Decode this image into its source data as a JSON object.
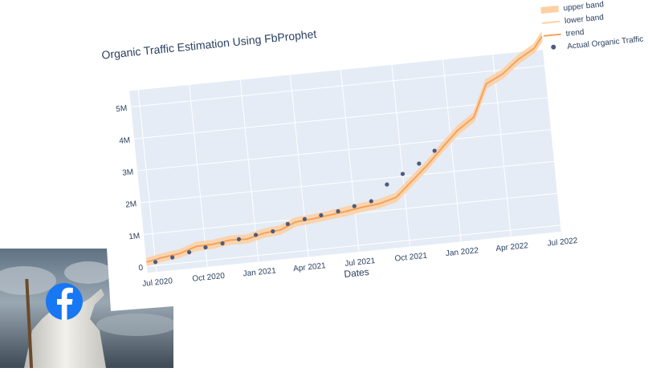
{
  "chart_data": {
    "type": "line",
    "title": "Organic Traffic Estimation Using FbProphet",
    "xlabel": "Dates",
    "ylabel": "",
    "x_tick_labels": [
      "Jul 2020",
      "Oct 2020",
      "Jan 2021",
      "Apr 2021",
      "Jul 2021",
      "Oct 2021",
      "Jan 2022",
      "Apr 2022",
      "Jul 2022"
    ],
    "y_tick_labels": [
      "0",
      "1M",
      "2M",
      "3M",
      "4M",
      "5M"
    ],
    "xlim": [
      "2020-06-15",
      "2022-07-01"
    ],
    "ylim": [
      -200000,
      5500000
    ],
    "grid": true,
    "legend_position": "top-right",
    "colors": {
      "band": "#fdd0a2",
      "trend": "#f5a25b",
      "points": "#4c5c7d",
      "plot_bg": "#e5ecf6"
    },
    "series": [
      {
        "name": "upper band",
        "x": [
          "2020-06-15",
          "2020-07-15",
          "2020-08-15",
          "2020-09-15",
          "2020-10-15",
          "2020-11-15",
          "2020-12-15",
          "2021-01-15",
          "2021-02-15",
          "2021-03-15",
          "2021-04-15",
          "2021-05-15",
          "2021-06-15",
          "2021-07-15",
          "2021-08-15",
          "2021-09-15",
          "2021-10-15",
          "2021-11-15",
          "2021-12-15",
          "2022-01-15",
          "2022-02-15",
          "2022-03-15",
          "2022-04-15",
          "2022-05-15",
          "2022-06-15",
          "2022-07-01"
        ],
        "values": [
          250000,
          350000,
          420000,
          600000,
          610000,
          690000,
          670000,
          800000,
          850000,
          1050000,
          1090000,
          1150000,
          1230000,
          1300000,
          1360000,
          1500000,
          1950000,
          2400000,
          2900000,
          3400000,
          3750000,
          4750000,
          5000000,
          5400000,
          5700000,
          6050000
        ]
      },
      {
        "name": "lower band",
        "x": [
          "2020-06-15",
          "2020-07-15",
          "2020-08-15",
          "2020-09-15",
          "2020-10-15",
          "2020-11-15",
          "2020-12-15",
          "2021-01-15",
          "2021-02-15",
          "2021-03-15",
          "2021-04-15",
          "2021-05-15",
          "2021-06-15",
          "2021-07-15",
          "2021-08-15",
          "2021-09-15",
          "2021-10-15",
          "2021-11-15",
          "2021-12-15",
          "2022-01-15",
          "2022-02-15",
          "2022-03-15",
          "2022-04-15",
          "2022-05-15",
          "2022-06-15",
          "2022-07-01"
        ],
        "values": [
          20000,
          110000,
          180000,
          340000,
          360000,
          430000,
          410000,
          540000,
          590000,
          790000,
          840000,
          900000,
          960000,
          1040000,
          1100000,
          1240000,
          1680000,
          2140000,
          2640000,
          3130000,
          3490000,
          4480000,
          4740000,
          5140000,
          5440000,
          5780000
        ]
      },
      {
        "name": "trend",
        "x": [
          "2020-06-15",
          "2020-07-15",
          "2020-08-15",
          "2020-09-15",
          "2020-10-15",
          "2020-11-15",
          "2020-12-15",
          "2021-01-15",
          "2021-02-15",
          "2021-03-15",
          "2021-04-15",
          "2021-05-15",
          "2021-06-15",
          "2021-07-15",
          "2021-08-15",
          "2021-09-15",
          "2021-10-15",
          "2021-11-15",
          "2021-12-15",
          "2022-01-15",
          "2022-02-15",
          "2022-03-15",
          "2022-04-15",
          "2022-05-15",
          "2022-06-15",
          "2022-07-01"
        ],
        "values": [
          135000,
          230000,
          300000,
          470000,
          485000,
          560000,
          540000,
          670000,
          720000,
          920000,
          965000,
          1025000,
          1095000,
          1170000,
          1230000,
          1370000,
          1815000,
          2270000,
          2770000,
          3265000,
          3620000,
          4615000,
          4870000,
          5270000,
          5570000,
          5915000
        ]
      },
      {
        "name": "Actual Organic Traffic",
        "x": [
          "2020-07-01",
          "2020-08-01",
          "2020-09-01",
          "2020-10-01",
          "2020-11-01",
          "2020-12-01",
          "2021-01-01",
          "2021-02-01",
          "2021-03-01",
          "2021-04-01",
          "2021-05-01",
          "2021-06-01",
          "2021-07-01",
          "2021-08-01",
          "2021-09-01",
          "2021-10-01",
          "2021-11-01",
          "2021-12-01"
        ],
        "values": [
          110000,
          200000,
          310000,
          410000,
          480000,
          560000,
          640000,
          700000,
          880000,
          980000,
          1050000,
          1120000,
          1230000,
          1330000,
          1800000,
          2080000,
          2350000,
          2700000
        ]
      }
    ]
  }
}
